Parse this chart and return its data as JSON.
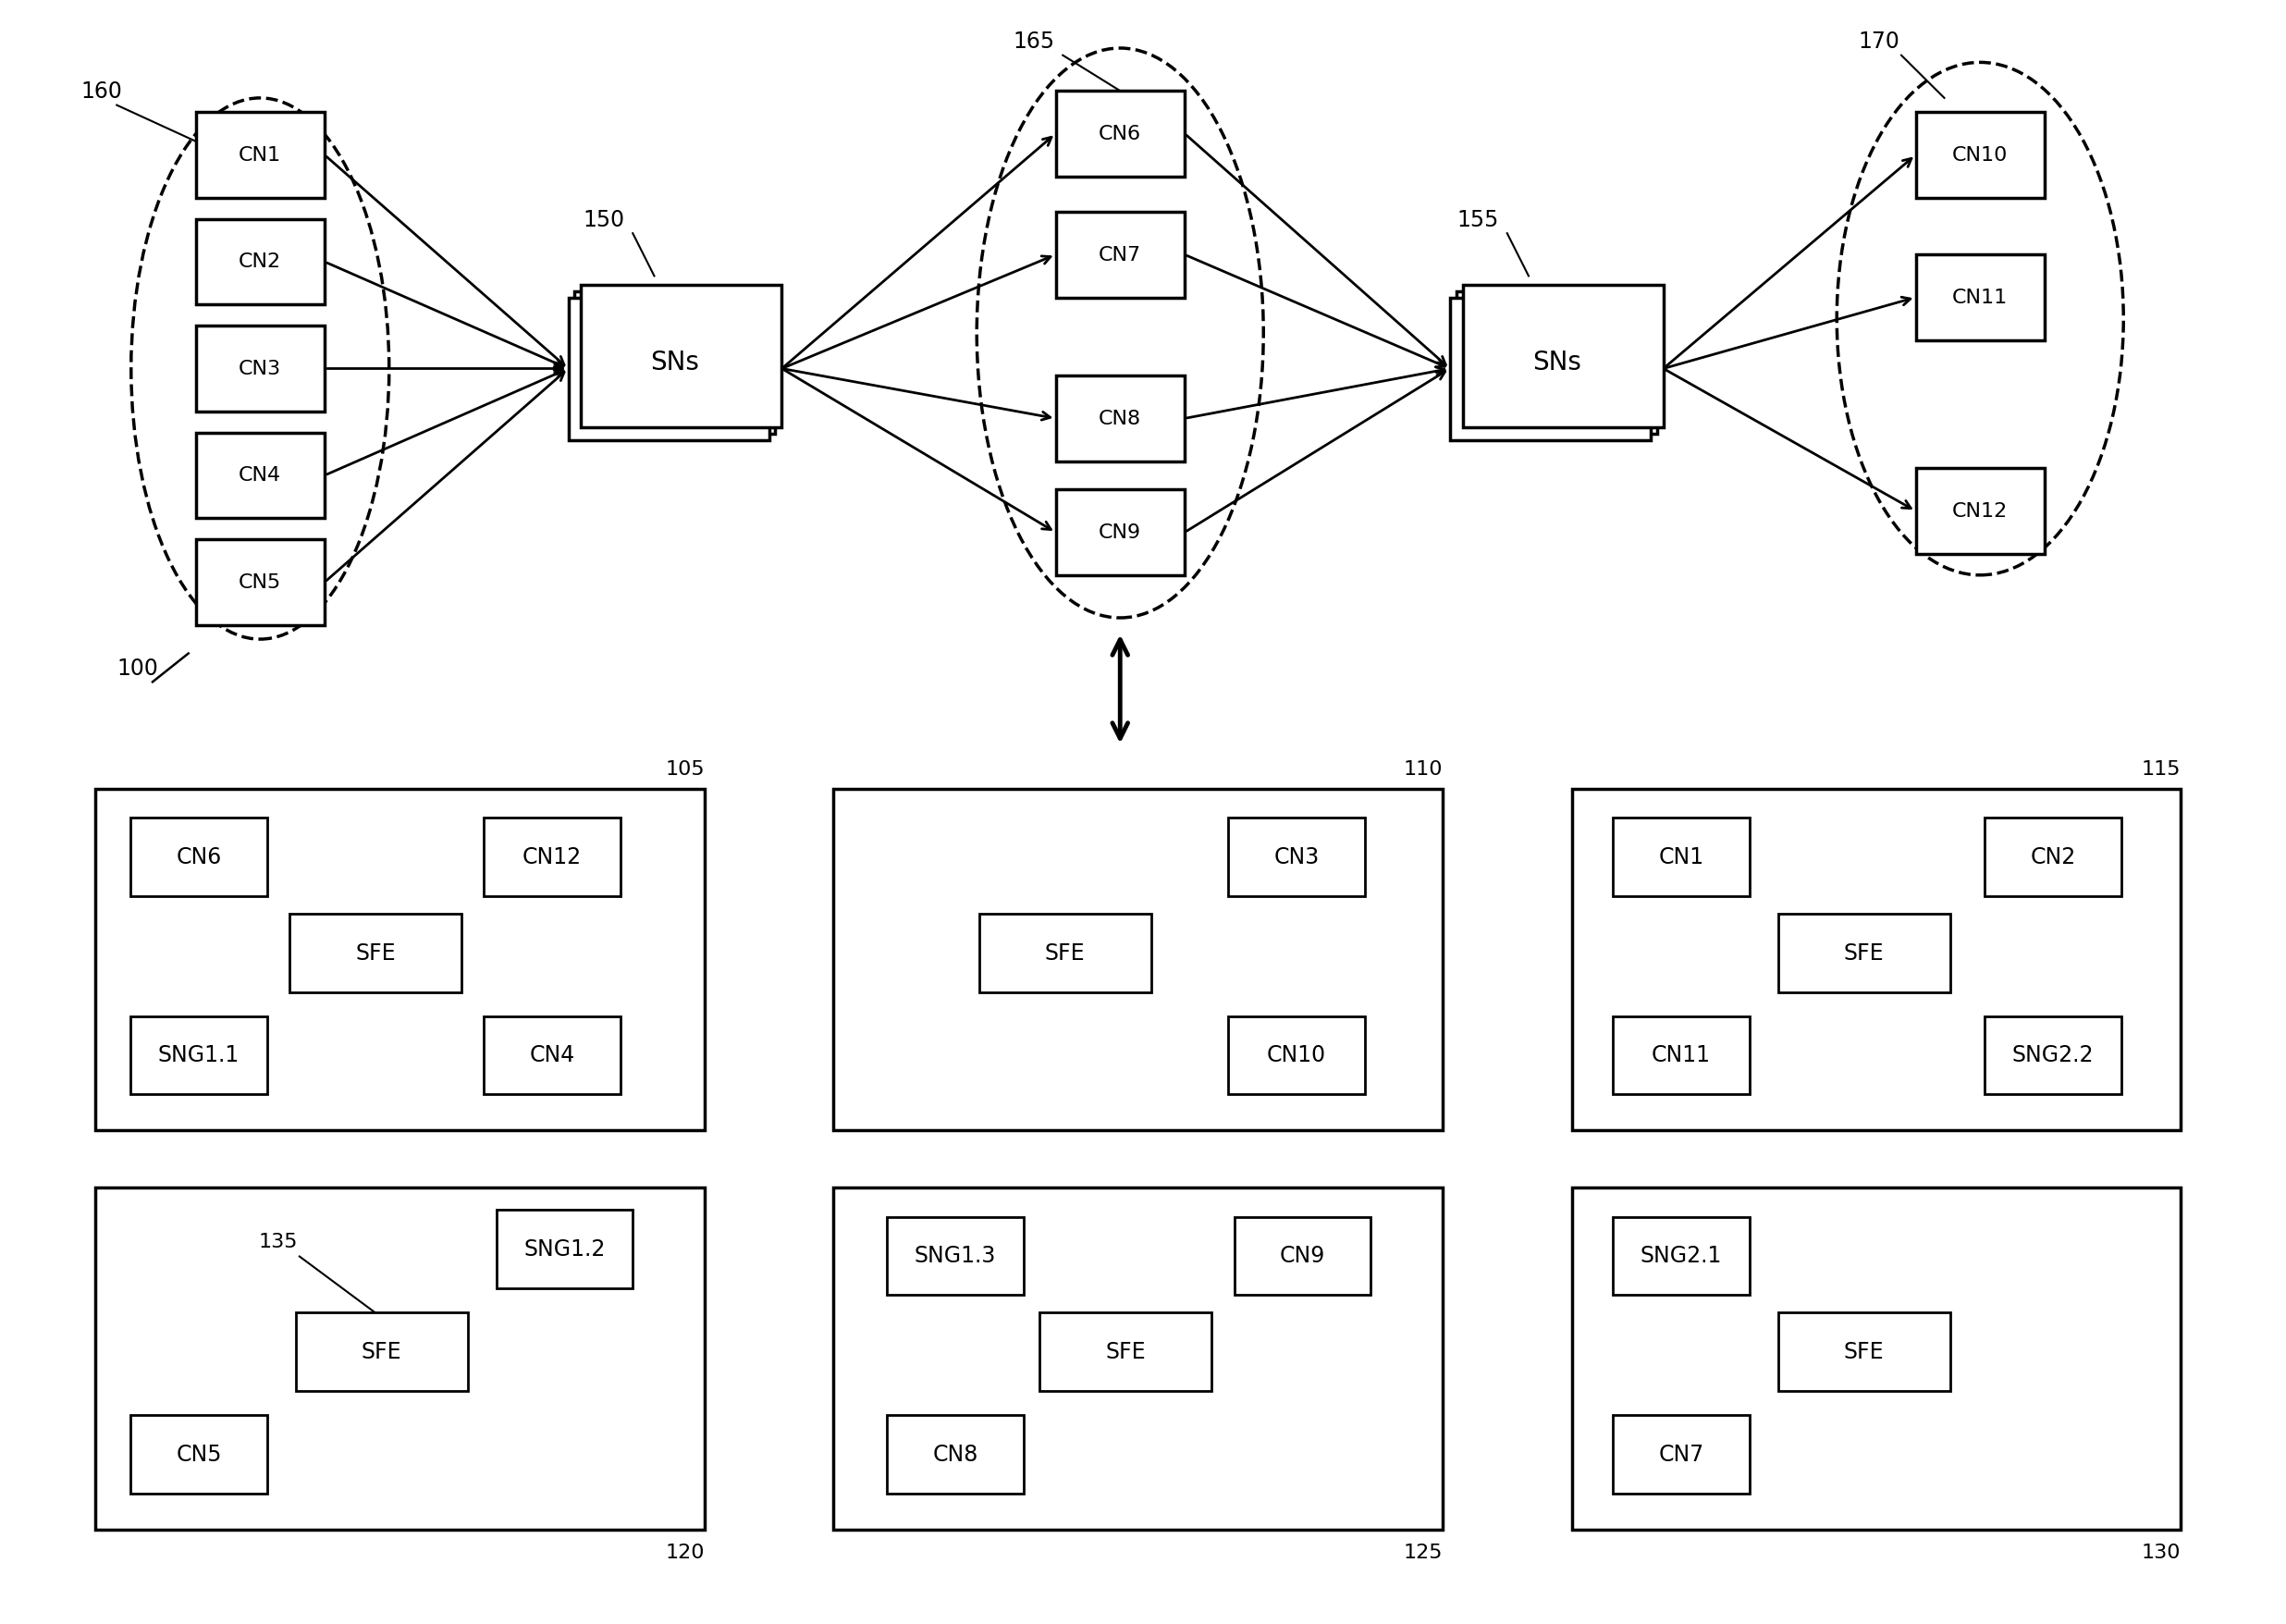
{
  "bg_color": "#ffffff",
  "g1_nodes": [
    "CN1",
    "CN2",
    "CN3",
    "CN4",
    "CN5"
  ],
  "g2_nodes": [
    "CN6",
    "CN7",
    "CN8",
    "CN9"
  ],
  "g3_nodes": [
    "CN10",
    "CN11",
    "CN12"
  ],
  "labels": {
    "g1": "160",
    "sns1": "150",
    "g2": "165",
    "sns2": "155",
    "g3": "170",
    "ref": "100"
  },
  "box_labels": [
    "105",
    "110",
    "115",
    "120",
    "125",
    "130"
  ],
  "box135_label": "135"
}
